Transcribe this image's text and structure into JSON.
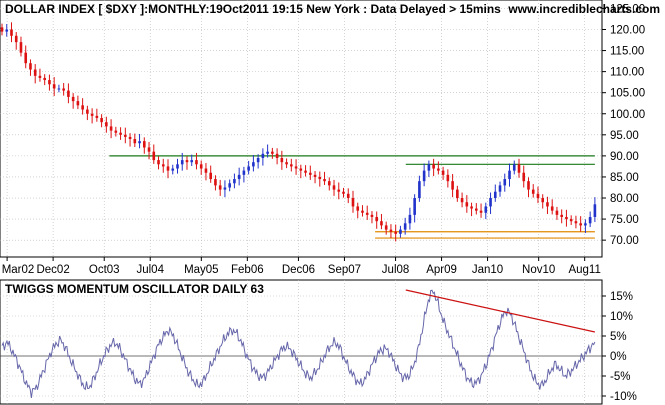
{
  "header": {
    "title": "DOLLAR INDEX [ $DXY ]:MONTHLY:19Oct2011 19:15 New York   : Data Delayed > 15mins",
    "site": "www.incrediblecharts.com"
  },
  "colors": {
    "up": "#2233cc",
    "down": "#dd1111",
    "resistance": "#1a7a1a",
    "support": "#e08a00",
    "grid": "#b7b7b7",
    "oscillator": "#6666aa",
    "trendline": "#cc1111",
    "border": "#000000"
  },
  "chart_data": [
    {
      "type": "candlestick",
      "title": "DOLLAR INDEX [ $DXY ]:MONTHLY:19Oct2011 19:15 New York   : Data Delayed > 15mins",
      "ylim": [
        66,
        127
      ],
      "y_ticks": [
        "125.00",
        "120.00",
        "115.00",
        "110.00",
        "105.00",
        "100.00",
        "95.00",
        "90.00",
        "85.00",
        "80.00",
        "75.00",
        "70.00"
      ],
      "x_ticks": [
        "Mar02",
        "Dec02",
        "Oct03",
        "Jul04",
        "May05",
        "Feb06",
        "Dec06",
        "Sep07",
        "Jul08",
        "Apr09",
        "Jan10",
        "Nov10",
        "Aug11"
      ],
      "grid": true,
      "horizontal_lines": [
        {
          "kind": "resistance",
          "y": 90.0,
          "x_from": "Nov03",
          "x_to": "Oct11"
        },
        {
          "kind": "resistance",
          "y": 88.0,
          "x_from": "Sep08",
          "x_to": "Oct11"
        },
        {
          "kind": "support",
          "y": 72.0,
          "x_from": "Mar08",
          "x_to": "Oct11"
        },
        {
          "kind": "support",
          "y": 70.5,
          "x_from": "Mar08",
          "x_to": "Oct11"
        }
      ],
      "closes": [
        119.5,
        120.0,
        118.5,
        117.0,
        114.5,
        112.0,
        110.5,
        109.0,
        108.5,
        108.0,
        107.0,
        106.0,
        106.0,
        105.5,
        104.0,
        103.0,
        102.0,
        101.0,
        100.0,
        99.5,
        99.0,
        98.0,
        97.0,
        96.0,
        95.5,
        95.0,
        94.5,
        94.0,
        93.0,
        93.5,
        92.0,
        91.0,
        89.0,
        88.0,
        87.5,
        86.5,
        87.0,
        88.0,
        89.0,
        88.5,
        89.0,
        88.0,
        87.0,
        86.0,
        84.5,
        83.0,
        82.0,
        82.5,
        83.5,
        84.5,
        85.5,
        86.5,
        87.5,
        88.5,
        89.5,
        90.5,
        91.0,
        90.5,
        89.5,
        88.5,
        88.0,
        87.5,
        87.0,
        86.5,
        86.0,
        85.5,
        85.0,
        84.5,
        84.0,
        83.0,
        82.0,
        81.5,
        81.0,
        80.0,
        78.0,
        77.0,
        76.5,
        76.0,
        75.5,
        74.5,
        73.5,
        72.5,
        72.0,
        71.5,
        72.5,
        74.0,
        76.0,
        80.0,
        84.0,
        86.5,
        88.0,
        87.0,
        86.5,
        85.5,
        84.0,
        82.0,
        80.0,
        79.0,
        78.0,
        77.5,
        77.0,
        76.5,
        78.0,
        80.0,
        81.5,
        83.0,
        84.5,
        86.5,
        88.0,
        86.0,
        84.0,
        82.0,
        81.0,
        80.0,
        79.0,
        78.0,
        77.0,
        76.0,
        75.5,
        75.0,
        74.5,
        74.0,
        73.5,
        74.0,
        75.5,
        78.5
      ]
    },
    {
      "type": "line",
      "title": "TWIGGS MOMENTUM OSCILLATOR DAILY 63",
      "ylim": [
        -12,
        19
      ],
      "y_ticks": [
        "15%",
        "10%",
        "5%",
        "0%",
        "-5%",
        "-10%"
      ],
      "trendline": {
        "from": {
          "x": "Sep08",
          "y": 16.5
        },
        "to": {
          "x": "Oct11",
          "y": 6.0
        }
      },
      "series": [
        {
          "values": [
            2.0,
            3.5,
            1.5,
            -1.0,
            -4.0,
            -7.0,
            -9.0,
            -8.0,
            -5.0,
            -2.0,
            1.0,
            3.0,
            4.0,
            2.0,
            -1.0,
            -3.5,
            -6.0,
            -8.0,
            -7.5,
            -5.0,
            -2.0,
            0.5,
            2.5,
            3.5,
            2.0,
            -0.5,
            -3.0,
            -5.5,
            -7.0,
            -6.0,
            -3.0,
            0.0,
            3.0,
            5.0,
            6.5,
            5.0,
            2.0,
            -1.0,
            -4.0,
            -6.0,
            -7.5,
            -6.5,
            -4.0,
            -1.5,
            1.0,
            3.5,
            5.5,
            6.5,
            5.5,
            3.0,
            0.0,
            -2.5,
            -4.5,
            -5.5,
            -4.5,
            -2.5,
            -0.5,
            1.5,
            2.5,
            1.5,
            -0.5,
            -2.5,
            -4.5,
            -5.5,
            -4.0,
            -2.0,
            0.5,
            2.5,
            3.5,
            2.0,
            -1.0,
            -3.5,
            -5.5,
            -7.0,
            -6.0,
            -3.5,
            -1.0,
            1.0,
            2.0,
            1.0,
            -1.5,
            -4.0,
            -5.5,
            -5.0,
            -2.5,
            2.0,
            8.0,
            14.0,
            16.5,
            13.0,
            9.0,
            6.0,
            3.0,
            0.0,
            -3.0,
            -5.5,
            -7.0,
            -6.5,
            -4.5,
            -1.5,
            2.0,
            6.0,
            9.5,
            11.5,
            10.0,
            6.5,
            3.0,
            -0.5,
            -4.0,
            -6.5,
            -7.5,
            -6.0,
            -3.5,
            -2.0,
            -3.5,
            -5.0,
            -4.0,
            -2.5,
            -1.0,
            0.5,
            2.0,
            3.5
          ]
        }
      ]
    }
  ]
}
